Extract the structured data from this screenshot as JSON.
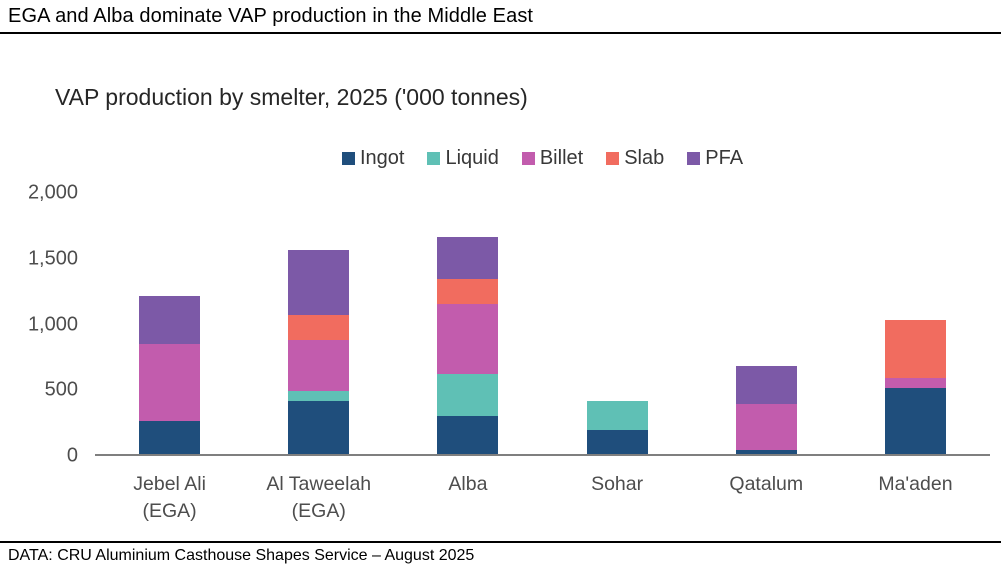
{
  "header": {
    "title": "EGA and Alba dominate VAP production in the Middle East"
  },
  "footer": {
    "source": "DATA: CRU Aluminium Casthouse Shapes Service – August 2025"
  },
  "chart_data": {
    "type": "bar",
    "stacked": true,
    "title": "VAP production by smelter, 2025 ('000 tonnes)",
    "xlabel": "",
    "ylabel": "",
    "ylim": [
      0,
      2000
    ],
    "grid": false,
    "legend_position": "top-center",
    "axis_line_color": "#7f7f7f",
    "categories": [
      [
        "Jebel Ali",
        "(EGA)"
      ],
      [
        "Al Taweelah",
        "(EGA)"
      ],
      [
        "Alba"
      ],
      [
        "Sohar"
      ],
      [
        "Qatalum"
      ],
      [
        "Ma'aden"
      ]
    ],
    "series": [
      {
        "name": "Ingot",
        "color": "#1f4e7c",
        "values": [
          250,
          400,
          290,
          180,
          30,
          500
        ]
      },
      {
        "name": "Liquid",
        "color": "#5fc0b5",
        "values": [
          0,
          80,
          320,
          220,
          0,
          0
        ]
      },
      {
        "name": "Billet",
        "color": "#c25cad",
        "values": [
          590,
          390,
          530,
          0,
          350,
          80
        ]
      },
      {
        "name": "Slab",
        "color": "#f16c5f",
        "values": [
          0,
          190,
          190,
          0,
          0,
          440
        ]
      },
      {
        "name": "PFA",
        "color": "#7c59a7",
        "values": [
          360,
          490,
          320,
          0,
          290,
          0
        ]
      }
    ],
    "stack_totals": [
      1200,
      1550,
      1650,
      400,
      670,
      1020
    ],
    "yticks": [
      {
        "value": 0,
        "label": "0"
      },
      {
        "value": 500,
        "label": "500"
      },
      {
        "value": 1000,
        "label": "1,000"
      },
      {
        "value": 1500,
        "label": "1,500"
      },
      {
        "value": 2000,
        "label": "2,000"
      }
    ]
  }
}
